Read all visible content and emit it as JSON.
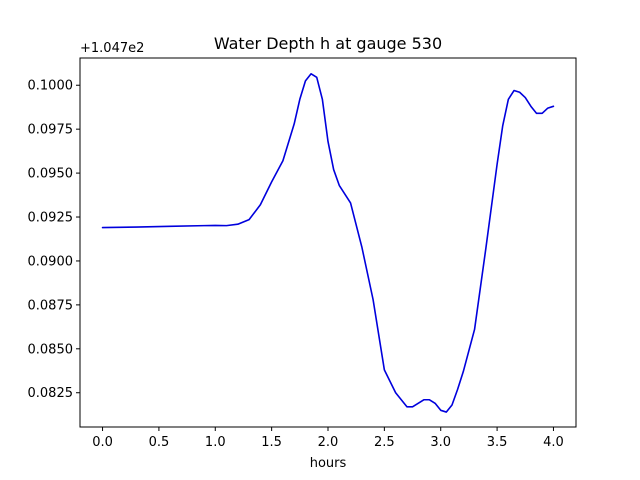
{
  "chart_data": {
    "type": "line",
    "title": "Water Depth h at gauge 530",
    "xlabel": "hours",
    "ylabel": "",
    "y_offset_label": "+1.047e2",
    "xlim": [
      -0.2,
      4.2
    ],
    "ylim": [
      0.08055,
      0.10155
    ],
    "x_ticks": [
      0.0,
      0.5,
      1.0,
      1.5,
      2.0,
      2.5,
      3.0,
      3.5,
      4.0
    ],
    "x_tick_labels": [
      "0.0",
      "0.5",
      "1.0",
      "1.5",
      "2.0",
      "2.5",
      "3.0",
      "3.5",
      "4.0"
    ],
    "y_ticks": [
      0.0825,
      0.085,
      0.0875,
      0.09,
      0.0925,
      0.095,
      0.0975,
      0.1
    ],
    "y_tick_labels": [
      "0.0825",
      "0.0850",
      "0.0875",
      "0.0900",
      "0.0925",
      "0.0950",
      "0.0975",
      "0.1000"
    ],
    "grid": false,
    "series": [
      {
        "color": "#0000dd",
        "x": [
          0.0,
          0.3,
          0.6,
          0.9,
          1.0,
          1.1,
          1.2,
          1.3,
          1.4,
          1.5,
          1.6,
          1.7,
          1.75,
          1.8,
          1.85,
          1.9,
          1.95,
          2.0,
          2.05,
          2.1,
          2.2,
          2.3,
          2.4,
          2.5,
          2.6,
          2.7,
          2.75,
          2.8,
          2.85,
          2.9,
          2.95,
          3.0,
          3.05,
          3.1,
          3.15,
          3.2,
          3.3,
          3.4,
          3.5,
          3.55,
          3.6,
          3.65,
          3.7,
          3.75,
          3.8,
          3.85,
          3.9,
          3.95,
          4.0
        ],
        "y": [
          0.0919,
          0.09193,
          0.09197,
          0.09201,
          0.09202,
          0.09201,
          0.09209,
          0.09235,
          0.0932,
          0.0945,
          0.0957,
          0.0978,
          0.0992,
          0.10025,
          0.10065,
          0.10045,
          0.0992,
          0.0968,
          0.0952,
          0.0943,
          0.0933,
          0.0908,
          0.0878,
          0.0838,
          0.0825,
          0.0817,
          0.0817,
          0.0819,
          0.0821,
          0.0821,
          0.0819,
          0.0815,
          0.0814,
          0.0818,
          0.0827,
          0.0837,
          0.0861,
          0.0907,
          0.0955,
          0.0977,
          0.0992,
          0.0997,
          0.0996,
          0.0993,
          0.0988,
          0.0984,
          0.0984,
          0.0987,
          0.0988
        ]
      }
    ]
  }
}
